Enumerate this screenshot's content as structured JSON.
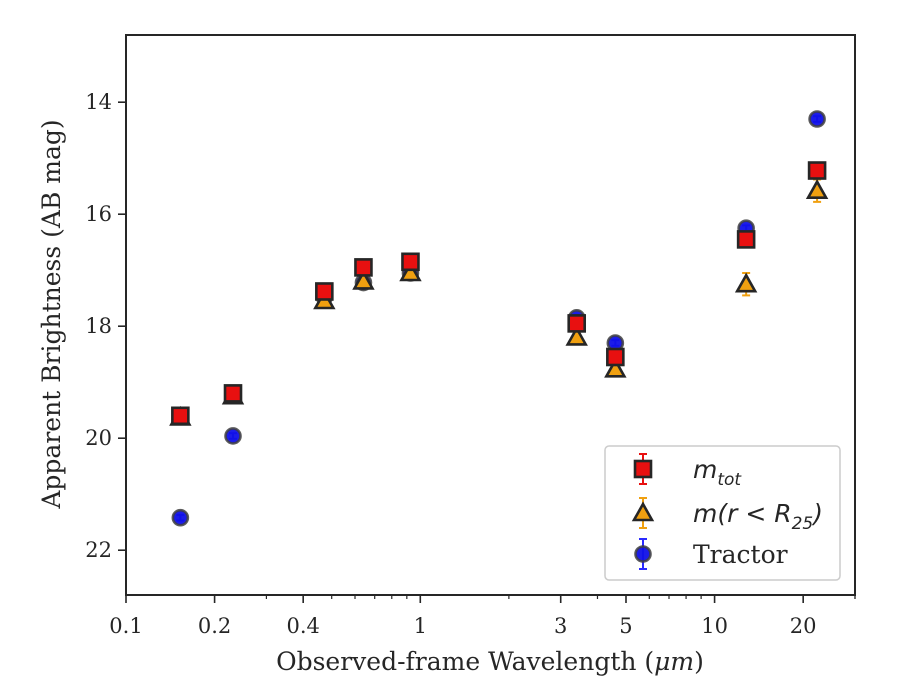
{
  "chart_data": {
    "type": "scatter",
    "xlabel_prefix": "Observed-frame Wavelength (",
    "xlabel_unit": "μm",
    "xlabel_suffix": ")",
    "ylabel": "Apparent Brightness (AB mag)",
    "xscale": "log",
    "xlim": [
      0.1,
      30
    ],
    "ylim": [
      22.8,
      12.8
    ],
    "y_inverted": true,
    "xticks": [
      {
        "value": 0.1,
        "label": "0.1"
      },
      {
        "value": 0.2,
        "label": "0.2"
      },
      {
        "value": 0.4,
        "label": "0.4"
      },
      {
        "value": 1,
        "label": "1"
      },
      {
        "value": 3,
        "label": "3"
      },
      {
        "value": 5,
        "label": "5"
      },
      {
        "value": 10,
        "label": "10"
      },
      {
        "value": 20,
        "label": "20"
      }
    ],
    "yticks": [
      14,
      16,
      18,
      20,
      22
    ],
    "legend_position": "lower-right",
    "series": [
      {
        "key": "tractor",
        "marker": "circle",
        "color": "#1010e8",
        "edge": "#404040",
        "errcolor": "#2a2aff",
        "x": [
          0.153,
          0.231,
          0.472,
          0.641,
          0.926,
          3.4,
          4.6,
          12.8,
          22.3
        ],
        "y": [
          21.42,
          19.96,
          17.48,
          17.22,
          17.05,
          17.85,
          18.3,
          16.25,
          14.3
        ],
        "err": [
          0.05,
          0.05,
          0.05,
          0.05,
          0.05,
          0.05,
          0.05,
          0.05,
          0.05
        ]
      },
      {
        "key": "m_r25",
        "marker": "triangle",
        "color": "#f0a010",
        "edge": "#262626",
        "errcolor": "#f0a010",
        "x": [
          0.153,
          0.231,
          0.472,
          0.641,
          0.926,
          3.4,
          4.6,
          12.8,
          22.3
        ],
        "y": [
          19.63,
          19.25,
          17.55,
          17.2,
          17.05,
          18.2,
          18.77,
          17.25,
          15.58
        ],
        "err": [
          0.05,
          0.05,
          0.05,
          0.05,
          0.05,
          0.06,
          0.06,
          0.2,
          0.2
        ]
      },
      {
        "key": "m_tot",
        "marker": "square",
        "color": "#e81010",
        "edge": "#262626",
        "errcolor": "#e81010",
        "x": [
          0.153,
          0.231,
          0.472,
          0.641,
          0.926,
          3.4,
          4.6,
          12.8,
          22.3
        ],
        "y": [
          19.6,
          19.2,
          17.38,
          16.95,
          16.85,
          17.95,
          18.55,
          16.45,
          15.22
        ],
        "err": [
          0.05,
          0.05,
          0.05,
          0.05,
          0.05,
          0.05,
          0.05,
          0.08,
          0.08
        ]
      }
    ],
    "legend": [
      {
        "key": "m_tot",
        "main": "m",
        "sub": "tot",
        "rest": ""
      },
      {
        "key": "m_r25",
        "main": "m",
        "sub": "",
        "rest": "(r < R",
        "rest_sub": "25",
        "rest_end": ")"
      },
      {
        "key": "tractor",
        "label": "Tractor"
      }
    ]
  }
}
